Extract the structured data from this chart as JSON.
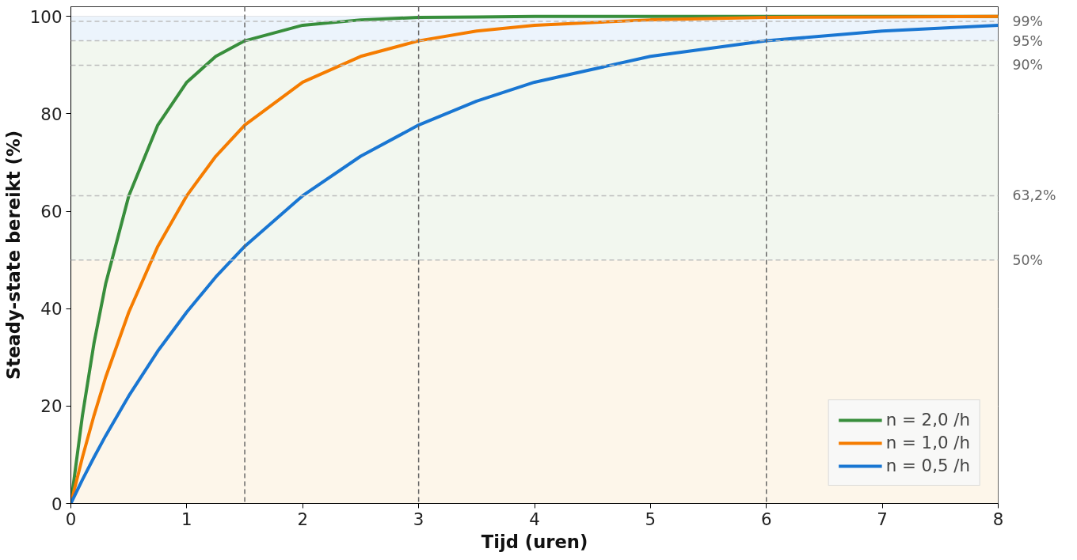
{
  "chart_data": {
    "type": "line",
    "xlabel": "Tijd (uren)",
    "ylabel": "Steady-state bereikt (%)",
    "x": [
      0,
      0.1,
      0.2,
      0.3,
      0.5,
      0.75,
      1,
      1.25,
      1.5,
      2,
      2.5,
      3,
      3.5,
      4,
      5,
      6,
      7,
      8
    ],
    "series": [
      {
        "name": "n = 2,0 /h",
        "color": "#388e3c",
        "values": [
          0,
          18.1,
          33.0,
          45.1,
          63.2,
          77.7,
          86.5,
          91.8,
          95.0,
          98.2,
          99.3,
          99.8,
          99.9,
          100,
          100,
          100,
          100,
          100
        ]
      },
      {
        "name": "n = 1,0 /h",
        "color": "#f57c00",
        "values": [
          0,
          9.5,
          18.1,
          25.9,
          39.3,
          52.8,
          63.2,
          71.3,
          77.7,
          86.5,
          91.8,
          95.0,
          97.0,
          98.2,
          99.3,
          99.8,
          99.9,
          100
        ]
      },
      {
        "name": "n = 0,5 /h",
        "color": "#1976d2",
        "values": [
          0,
          4.9,
          9.5,
          13.9,
          22.1,
          31.3,
          39.3,
          46.5,
          52.8,
          63.2,
          71.3,
          77.7,
          82.6,
          86.5,
          91.8,
          95.0,
          97.0,
          98.2
        ]
      }
    ],
    "xlim": [
      0,
      8
    ],
    "ylim": [
      0,
      102
    ],
    "xticks": [
      0,
      1,
      2,
      3,
      4,
      5,
      6,
      7,
      8
    ],
    "yticks": [
      0,
      20,
      40,
      60,
      80,
      100
    ],
    "ref_lines": [
      {
        "axis": "y",
        "value": 99,
        "label": "99%",
        "color": "#bdbdbd",
        "line_style": "dashed"
      },
      {
        "axis": "y",
        "value": 95,
        "label": "95%",
        "color": "#bdbdbd",
        "line_style": "dashed"
      },
      {
        "axis": "y",
        "value": 90,
        "label": "90%",
        "color": "#bdbdbd",
        "line_style": "dashed"
      },
      {
        "axis": "y",
        "value": 63.2,
        "label": "63,2%",
        "color": "#bdbdbd",
        "line_style": "dashed"
      },
      {
        "axis": "y",
        "value": 50,
        "label": "50%",
        "color": "#bdbdbd",
        "line_style": "dashed"
      },
      {
        "axis": "x",
        "value": 1.5,
        "color": "#666666",
        "line_style": "dashed"
      },
      {
        "axis": "x",
        "value": 3,
        "color": "#666666",
        "line_style": "dashed"
      },
      {
        "axis": "x",
        "value": 6,
        "color": "#666666",
        "line_style": "dashed"
      }
    ],
    "bands": [
      {
        "axis": "y",
        "from": 0,
        "to": 50,
        "color": "#fdf6ea"
      },
      {
        "axis": "y",
        "from": 50,
        "to": 95,
        "color": "#f2f7ef"
      },
      {
        "axis": "y",
        "from": 95,
        "to": 100,
        "color": "#ecf4fc"
      }
    ],
    "grid": "y",
    "legend": "bottom right",
    "line_style": "solid",
    "marker": "none"
  }
}
